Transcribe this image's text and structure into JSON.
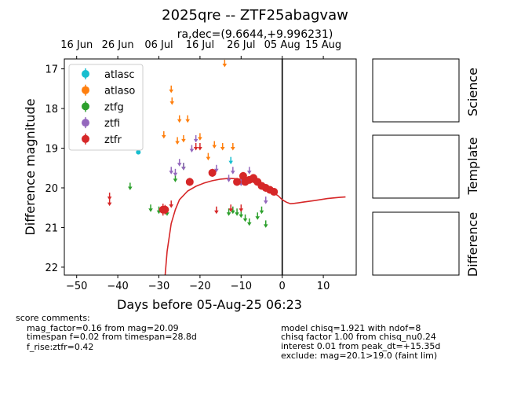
{
  "figure": {
    "title": "2025qre -- ZTF25abagvaw",
    "subtitle": "ra,dec=(9.6644,+9.996231)"
  },
  "panels": {
    "science": "Science",
    "template": "Template",
    "difference": "Difference"
  },
  "comments_left": {
    "header": "score comments:",
    "lines": [
      "mag_factor=0.16 from mag=20.09",
      "timespan f=0.02 from timespan=28.8d",
      "f_rise:ztfr=0.42"
    ]
  },
  "comments_right": {
    "lines": [
      "model chisq=1.921 with ndof=8",
      "chisq factor 1.00 from chisq_nu0.24",
      "interest 0.01 from peak_dt=+15.35d",
      "exclude: mag=20.1>19.0 (faint lim)"
    ]
  },
  "chart_data": {
    "type": "scatter",
    "xlabel": "Days before 05-Aug-25 06:23",
    "ylabel": "Difference magnitude",
    "xlim": [
      -53,
      18
    ],
    "ylim": [
      22.2,
      16.75
    ],
    "y_inverted": true,
    "xticks": [
      -50,
      -40,
      -30,
      -20,
      -10,
      0,
      10
    ],
    "yticks": [
      17,
      18,
      19,
      20,
      21,
      22
    ],
    "top_axis": {
      "labels": [
        "16 Jun",
        "26 Jun",
        "06 Jul",
        "16 Jul",
        "26 Jul",
        "05 Aug",
        "15 Aug"
      ],
      "x": [
        -50,
        -40,
        -30,
        -20,
        -10,
        0,
        10
      ]
    },
    "reference_line_x": 0,
    "legend": {
      "placement": "upper-left",
      "entries": [
        {
          "name": "atlasc",
          "color": "#17becf"
        },
        {
          "name": "atlaso",
          "color": "#ff7f0e"
        },
        {
          "name": "ztfg",
          "color": "#2ca02c"
        },
        {
          "name": "ztfi",
          "color": "#9467bd"
        },
        {
          "name": "ztfr",
          "color": "#d62728"
        }
      ]
    },
    "model_curve": {
      "color": "#d62728",
      "x": [
        -28.8,
        -28,
        -27,
        -26,
        -25,
        -23,
        -21,
        -19,
        -17,
        -15,
        -13,
        -11,
        -9,
        -7,
        -5,
        -3,
        -1,
        0,
        1,
        2,
        3,
        5,
        8,
        11,
        14,
        15.4
      ],
      "y": [
        22.6,
        21.6,
        20.9,
        20.55,
        20.3,
        20.08,
        19.96,
        19.88,
        19.82,
        19.78,
        19.76,
        19.77,
        19.8,
        19.86,
        19.95,
        20.06,
        20.2,
        20.3,
        20.36,
        20.4,
        20.39,
        20.36,
        20.32,
        20.27,
        20.24,
        20.23
      ]
    },
    "series": [
      {
        "name": "atlasc",
        "color": "#17becf",
        "detections": [
          {
            "x": -35,
            "y": 19.1,
            "err": 0.05
          }
        ],
        "upper_limits": [
          {
            "x": -12.5,
            "y": 19.3
          }
        ]
      },
      {
        "name": "atlaso",
        "color": "#ff7f0e",
        "detections": [],
        "upper_limits": [
          {
            "x": -14,
            "y": 16.85
          },
          {
            "x": -27,
            "y": 17.5
          },
          {
            "x": -26.8,
            "y": 17.8
          },
          {
            "x": -25,
            "y": 18.25
          },
          {
            "x": -23,
            "y": 18.25
          },
          {
            "x": -28.8,
            "y": 18.65
          },
          {
            "x": -25.5,
            "y": 18.8
          },
          {
            "x": -24,
            "y": 18.75
          },
          {
            "x": -20,
            "y": 18.7
          },
          {
            "x": -18,
            "y": 19.2
          },
          {
            "x": -16.5,
            "y": 18.9
          },
          {
            "x": -14.5,
            "y": 18.95
          },
          {
            "x": -12,
            "y": 18.95
          }
        ]
      },
      {
        "name": "ztfg",
        "color": "#2ca02c",
        "detections": [],
        "upper_limits": [
          {
            "x": -37,
            "y": 19.95
          },
          {
            "x": -32,
            "y": 20.5
          },
          {
            "x": -30,
            "y": 20.55
          },
          {
            "x": -28,
            "y": 20.6
          },
          {
            "x": -26,
            "y": 19.75
          },
          {
            "x": -24,
            "y": 19.45
          },
          {
            "x": -13,
            "y": 20.6
          },
          {
            "x": -12,
            "y": 20.55
          },
          {
            "x": -11,
            "y": 20.6
          },
          {
            "x": -10,
            "y": 20.65
          },
          {
            "x": -9,
            "y": 20.75
          },
          {
            "x": -8,
            "y": 20.85
          },
          {
            "x": -6,
            "y": 20.7
          },
          {
            "x": -5,
            "y": 20.55
          },
          {
            "x": -4,
            "y": 20.9
          }
        ]
      },
      {
        "name": "ztfi",
        "color": "#9467bd",
        "detections": [],
        "upper_limits": [
          {
            "x": -27,
            "y": 19.55
          },
          {
            "x": -26,
            "y": 19.6
          },
          {
            "x": -25,
            "y": 19.35
          },
          {
            "x": -24,
            "y": 19.45
          },
          {
            "x": -22,
            "y": 19.0
          },
          {
            "x": -21,
            "y": 18.75
          },
          {
            "x": -16,
            "y": 19.5
          },
          {
            "x": -13,
            "y": 19.75
          },
          {
            "x": -12,
            "y": 19.55
          },
          {
            "x": -10,
            "y": 19.85
          },
          {
            "x": -8,
            "y": 19.55
          },
          {
            "x": -4,
            "y": 20.3
          }
        ]
      },
      {
        "name": "ztfr",
        "color": "#d62728",
        "detections": [
          {
            "x": -29,
            "y": 20.55,
            "err": 0.15
          },
          {
            "x": -28.5,
            "y": 20.55,
            "err": 0.12
          },
          {
            "x": -22.5,
            "y": 19.85,
            "err": 0.1
          },
          {
            "x": -17,
            "y": 19.62,
            "err": 0.1
          },
          {
            "x": -11,
            "y": 19.85,
            "err": 0.1
          },
          {
            "x": -9.5,
            "y": 19.7,
            "err": 0.1
          },
          {
            "x": -9,
            "y": 19.85,
            "err": 0.08
          },
          {
            "x": -8,
            "y": 19.8,
            "err": 0.08
          },
          {
            "x": -7,
            "y": 19.75,
            "err": 0.08
          },
          {
            "x": -6,
            "y": 19.85,
            "err": 0.08
          },
          {
            "x": -5,
            "y": 19.95,
            "err": 0.08
          },
          {
            "x": -4,
            "y": 20.0,
            "err": 0.08
          },
          {
            "x": -3,
            "y": 20.05,
            "err": 0.08
          },
          {
            "x": -2,
            "y": 20.1,
            "err": 0.08
          }
        ],
        "upper_limits": [
          {
            "x": -42,
            "y": 20.2
          },
          {
            "x": -42,
            "y": 20.35
          },
          {
            "x": -27,
            "y": 20.4
          },
          {
            "x": -21,
            "y": 18.95
          },
          {
            "x": -20,
            "y": 18.95
          },
          {
            "x": -16,
            "y": 20.55
          },
          {
            "x": -12.5,
            "y": 20.5
          },
          {
            "x": -10,
            "y": 20.5
          },
          {
            "x": -4,
            "y": 20.0
          }
        ]
      }
    ]
  }
}
